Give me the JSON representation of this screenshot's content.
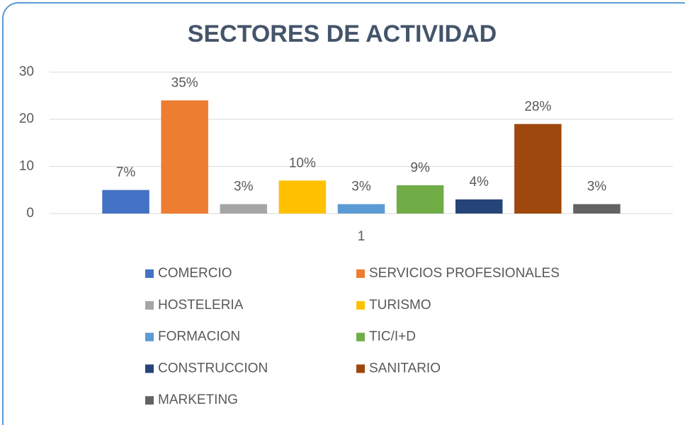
{
  "chart_data": {
    "type": "bar",
    "title": "SECTORES DE ACTIVIDAD",
    "categories": [
      "1"
    ],
    "series": [
      {
        "name": "COMERCIO",
        "color": "#4472c4",
        "values": [
          5
        ],
        "value_labels": [
          "7%"
        ]
      },
      {
        "name": "SERVICIOS PROFESIONALES",
        "color": "#ed7d31",
        "values": [
          24
        ],
        "value_labels": [
          "35%"
        ]
      },
      {
        "name": "HOSTELERIA",
        "color": "#a5a5a5",
        "values": [
          2
        ],
        "value_labels": [
          "3%"
        ]
      },
      {
        "name": "TURISMO",
        "color": "#ffc000",
        "values": [
          7
        ],
        "value_labels": [
          "10%"
        ]
      },
      {
        "name": "FORMACION",
        "color": "#5b9bd5",
        "values": [
          2
        ],
        "value_labels": [
          "3%"
        ]
      },
      {
        "name": "TIC/I+D",
        "color": "#70ad47",
        "values": [
          6
        ],
        "value_labels": [
          "9%"
        ]
      },
      {
        "name": "CONSTRUCCION",
        "color": "#264478",
        "values": [
          3
        ],
        "value_labels": [
          "4%"
        ]
      },
      {
        "name": "SANITARIO",
        "color": "#9e480e",
        "values": [
          19
        ],
        "value_labels": [
          "28%"
        ]
      },
      {
        "name": "MARKETING",
        "color": "#636363",
        "values": [
          2
        ],
        "value_labels": [
          "3%"
        ]
      }
    ],
    "ylim": [
      0,
      30
    ],
    "yticks": [
      0,
      10,
      20,
      30
    ],
    "grid": true,
    "legend": "bottom"
  }
}
